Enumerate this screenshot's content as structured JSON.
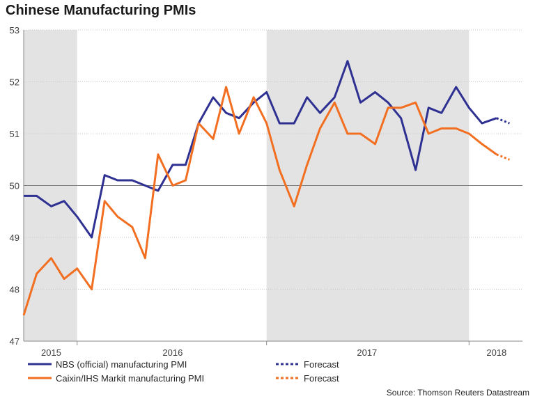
{
  "chart_data": {
    "type": "line",
    "title": "Chinese Manufacturing PMIs",
    "ylim": [
      47,
      53
    ],
    "yticks": [
      "47",
      "48",
      "49",
      "50",
      "51",
      "52",
      "53"
    ],
    "xtick_labels": [
      "2015",
      "2016",
      "2017",
      "2018"
    ],
    "reference_line": 50,
    "shaded_periods": [
      [
        2015.0,
        2015.33
      ],
      [
        2016.5,
        2017.75
      ]
    ],
    "series": [
      {
        "name": "NBS (official) manufacturing PMI",
        "color": "#2e3192",
        "values": [
          [
            2015.0,
            49.8
          ],
          [
            2015.08,
            49.8
          ],
          [
            2015.17,
            49.6
          ],
          [
            2015.25,
            49.7
          ],
          [
            2015.33,
            49.4
          ],
          [
            2015.42,
            49.0
          ],
          [
            2015.5,
            50.2
          ],
          [
            2015.58,
            50.1
          ],
          [
            2015.67,
            50.1
          ],
          [
            2015.75,
            50.0
          ],
          [
            2015.83,
            49.9
          ],
          [
            2015.92,
            50.4
          ],
          [
            2016.0,
            50.4
          ],
          [
            2016.08,
            51.2
          ],
          [
            2016.17,
            51.7
          ],
          [
            2016.25,
            51.4
          ],
          [
            2016.33,
            51.3
          ],
          [
            2016.42,
            51.6
          ],
          [
            2016.5,
            51.8
          ],
          [
            2016.58,
            51.2
          ],
          [
            2016.67,
            51.2
          ],
          [
            2016.75,
            51.7
          ],
          [
            2016.83,
            51.4
          ],
          [
            2016.92,
            51.7
          ],
          [
            2017.0,
            52.4
          ],
          [
            2017.08,
            51.6
          ],
          [
            2017.17,
            51.8
          ],
          [
            2017.25,
            51.6
          ],
          [
            2017.33,
            51.3
          ],
          [
            2017.42,
            50.3
          ],
          [
            2017.5,
            51.5
          ],
          [
            2017.58,
            51.4
          ],
          [
            2017.67,
            51.9
          ],
          [
            2017.75,
            51.5
          ],
          [
            2017.83,
            51.2
          ],
          [
            2017.92,
            51.3
          ]
        ],
        "forecast": [
          [
            2017.92,
            51.3
          ],
          [
            2018.0,
            51.2
          ]
        ]
      },
      {
        "name": "Caixin/IHS Markit manufacturing PMI",
        "color": "#f26f21",
        "values": [
          [
            2015.0,
            47.5
          ],
          [
            2015.08,
            48.3
          ],
          [
            2015.17,
            48.6
          ],
          [
            2015.25,
            48.2
          ],
          [
            2015.33,
            48.4
          ],
          [
            2015.42,
            48.0
          ],
          [
            2015.5,
            49.7
          ],
          [
            2015.58,
            49.4
          ],
          [
            2015.67,
            49.2
          ],
          [
            2015.75,
            48.6
          ],
          [
            2015.83,
            50.6
          ],
          [
            2015.92,
            50.0
          ],
          [
            2016.0,
            50.1
          ],
          [
            2016.08,
            51.2
          ],
          [
            2016.17,
            50.9
          ],
          [
            2016.25,
            51.9
          ],
          [
            2016.33,
            51.0
          ],
          [
            2016.42,
            51.7
          ],
          [
            2016.5,
            51.2
          ],
          [
            2016.58,
            50.3
          ],
          [
            2016.67,
            49.6
          ],
          [
            2016.75,
            50.4
          ],
          [
            2016.83,
            51.1
          ],
          [
            2016.92,
            51.6
          ],
          [
            2017.0,
            51.0
          ],
          [
            2017.08,
            51.0
          ],
          [
            2017.17,
            50.8
          ],
          [
            2017.25,
            51.5
          ],
          [
            2017.33,
            51.5
          ],
          [
            2017.42,
            51.6
          ],
          [
            2017.5,
            51.0
          ],
          [
            2017.58,
            51.1
          ],
          [
            2017.67,
            51.1
          ],
          [
            2017.75,
            51.0
          ],
          [
            2017.83,
            50.8
          ],
          [
            2017.92,
            50.6
          ]
        ],
        "forecast": [
          [
            2017.92,
            50.6
          ],
          [
            2018.0,
            50.5
          ]
        ]
      }
    ],
    "legend": [
      {
        "label": "NBS (official) manufacturing PMI",
        "color": "#2e3192",
        "style": "solid"
      },
      {
        "label": "Caixin/IHS Markit manufacturing PMI",
        "color": "#f26f21",
        "style": "solid"
      },
      {
        "label": "Forecast",
        "color": "#2e3192",
        "style": "dotted"
      },
      {
        "label": "Forecast",
        "color": "#f26f21",
        "style": "dotted"
      }
    ],
    "source": "Source: Thomson Reuters Datastream"
  }
}
